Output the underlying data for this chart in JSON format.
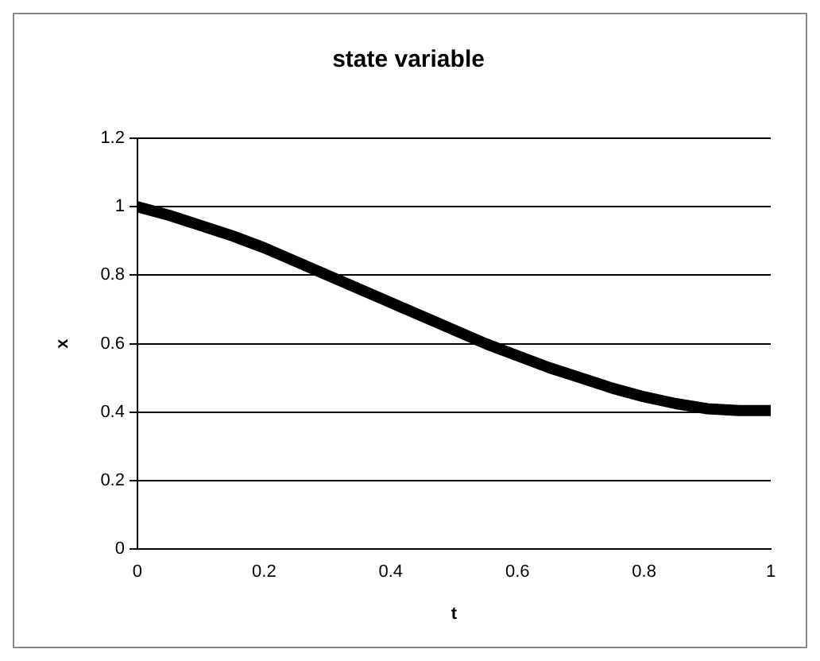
{
  "chart_data": {
    "type": "line",
    "title": "state variable",
    "xlabel": "t",
    "ylabel": "x",
    "x": [
      0,
      0.05,
      0.1,
      0.15,
      0.2,
      0.25,
      0.3,
      0.35,
      0.4,
      0.45,
      0.5,
      0.55,
      0.6,
      0.65,
      0.7,
      0.75,
      0.8,
      0.85,
      0.9,
      0.95,
      1
    ],
    "series": [
      {
        "color": "#000000",
        "values": [
          1,
          0.975,
          0.945,
          0.915,
          0.88,
          0.84,
          0.8,
          0.76,
          0.72,
          0.68,
          0.64,
          0.6,
          0.565,
          0.53,
          0.5,
          0.47,
          0.445,
          0.425,
          0.41,
          0.405,
          0.405
        ]
      }
    ],
    "xlim": [
      0,
      1
    ],
    "xticks": [
      0,
      0.2,
      0.4,
      0.6,
      0.8,
      1
    ],
    "ylim": [
      0,
      1.2
    ],
    "yticks": [
      0,
      0.2,
      0.4,
      0.6,
      0.8,
      1,
      1.2
    ],
    "grid": "y",
    "legend": false,
    "marker": "none",
    "line_style": "solid"
  }
}
